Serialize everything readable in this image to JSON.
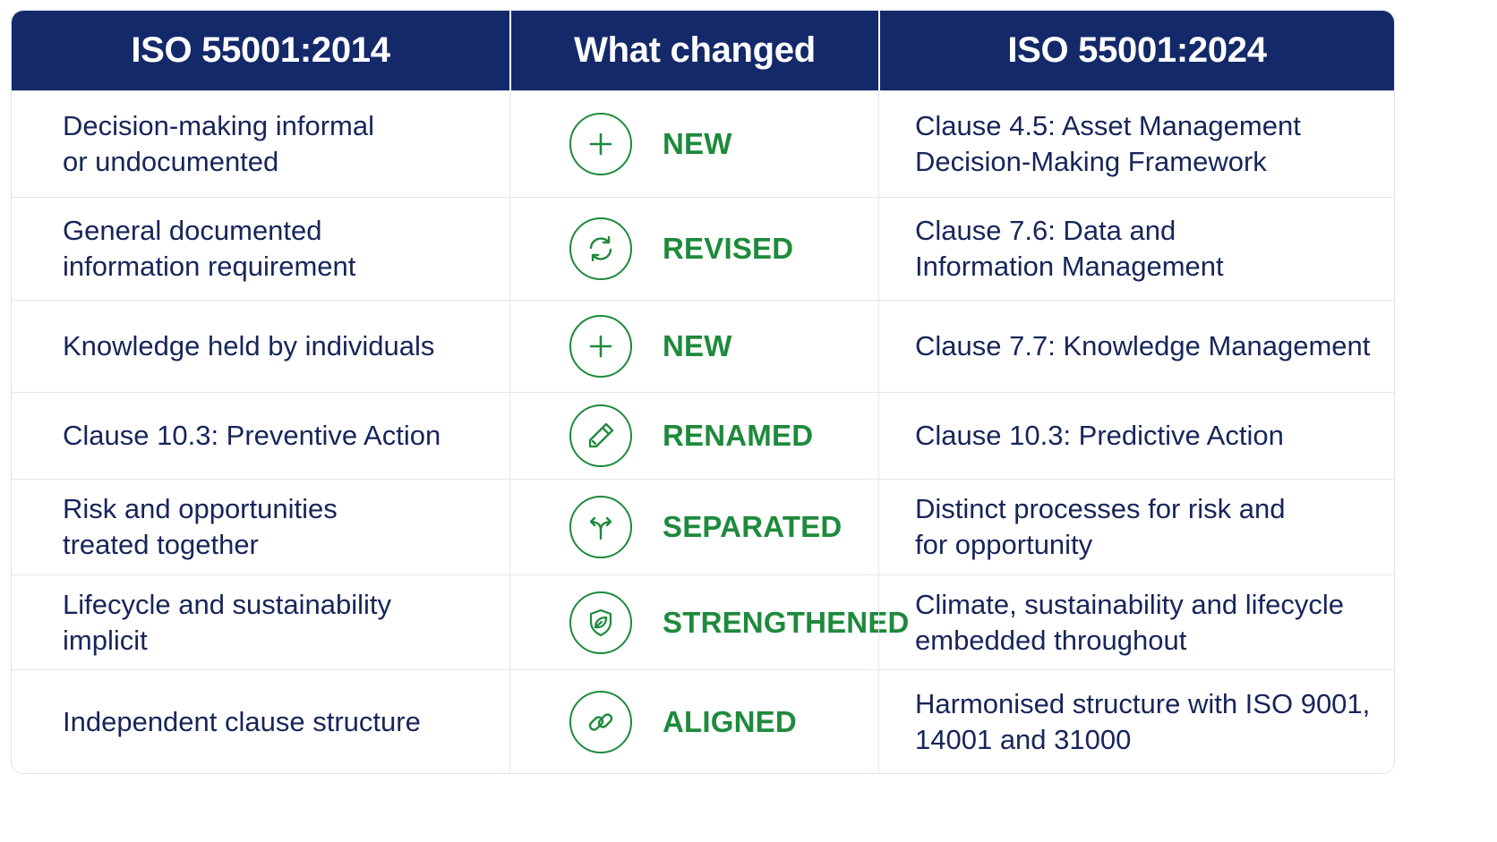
{
  "header": {
    "col_old": "ISO 55001:2014",
    "col_change": "What changed",
    "col_new": "ISO 55001:2024"
  },
  "colors": {
    "header_bg": "#14296a",
    "accent_green": "#1e8a3c",
    "body_text": "#17255a"
  },
  "rows": [
    {
      "old": "Decision-making informal\nor undocumented",
      "icon": "plus-icon",
      "status": "NEW",
      "new": "Clause 4.5: Asset Management\nDecision-Making Framework"
    },
    {
      "old": "General documented\ninformation requirement",
      "icon": "refresh-icon",
      "status": "REVISED",
      "new": "Clause 7.6: Data and\nInformation Management"
    },
    {
      "old": "Knowledge held by individuals",
      "icon": "plus-icon",
      "status": "NEW",
      "new": "Clause 7.7: Knowledge Management"
    },
    {
      "old": "Clause 10.3: Preventive Action",
      "icon": "pencil-icon",
      "status": "RENAMED",
      "new": "Clause 10.3: Predictive Action"
    },
    {
      "old": "Risk and opportunities\ntreated together",
      "icon": "split-arrows-icon",
      "status": "SEPARATED",
      "new": "Distinct processes for risk and\nfor opportunity"
    },
    {
      "old": "Lifecycle and sustainability\nimplicit",
      "icon": "shield-leaf-icon",
      "status": "STRENGTHENED",
      "new": "Climate, sustainability and lifecycle\nembedded throughout"
    },
    {
      "old": "Independent clause structure",
      "icon": "link-icon",
      "status": "ALIGNED",
      "new": "Harmonised structure with ISO 9001,\n14001 and 31000"
    }
  ]
}
